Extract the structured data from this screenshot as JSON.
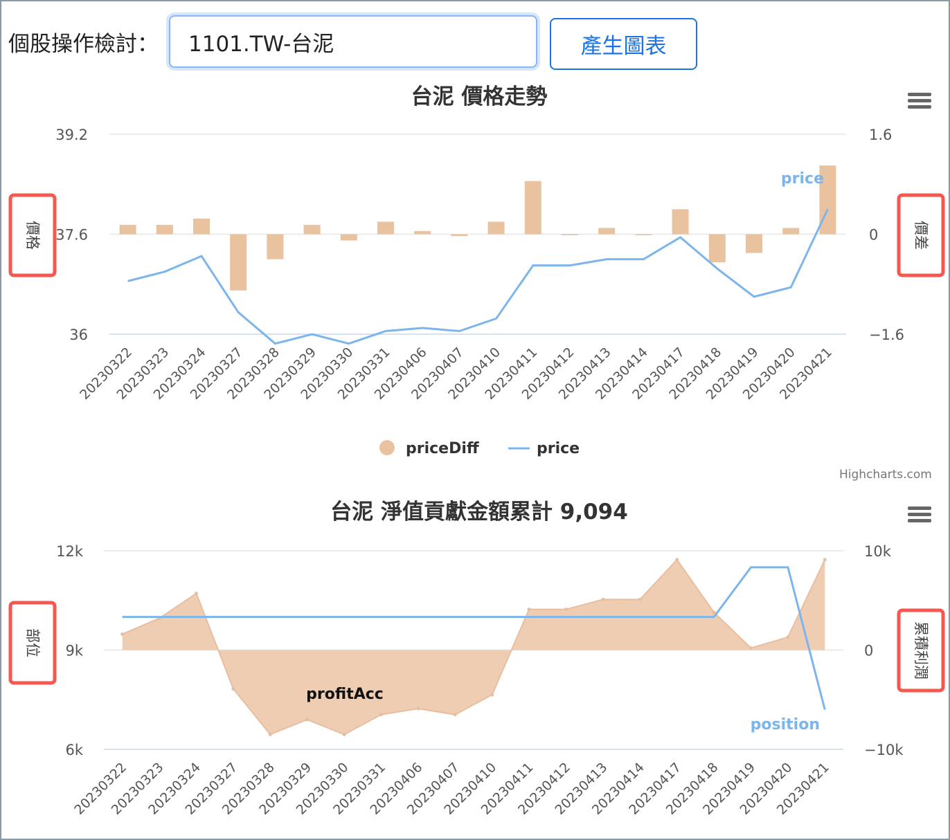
{
  "toolbar": {
    "label": "個股操作檢討：",
    "stock_value": "1101.TW-台泥",
    "generate_label": "產生圖表"
  },
  "credit": "Highcharts.com",
  "colors": {
    "bar": "#e9c29f",
    "line": "#7cb5ec",
    "area_fill": "#efcdb3",
    "area_stroke": "#e8bea0",
    "highlight": "#f4584e"
  },
  "chart_data": [
    {
      "type": "bar+line",
      "title": "台泥 價格走勢",
      "categories": [
        "20230322",
        "20230323",
        "20230324",
        "20230327",
        "20230328",
        "20230329",
        "20230330",
        "20230331",
        "20230406",
        "20230407",
        "20230410",
        "20230411",
        "20230412",
        "20230413",
        "20230414",
        "20230417",
        "20230418",
        "20230419",
        "20230420",
        "20230421"
      ],
      "ylabel_left": "價格",
      "ylabel_right": "價差",
      "left_ticks": [
        "39.2",
        "37.6",
        "36"
      ],
      "right_ticks": [
        "1.6",
        "0",
        "−1.6"
      ],
      "ylim_left": [
        36,
        39.2
      ],
      "ylim_right": [
        -1.6,
        1.6
      ],
      "series": [
        {
          "name": "priceDiff",
          "axis": "right",
          "kind": "bar",
          "values": [
            0.15,
            0.15,
            0.25,
            -0.9,
            -0.4,
            0.15,
            -0.1,
            0.2,
            0.05,
            -0.03,
            0.2,
            0.85,
            0,
            0.1,
            0,
            0.4,
            -0.45,
            -0.3,
            0.1,
            1.1
          ]
        },
        {
          "name": "price",
          "axis": "left",
          "kind": "line",
          "values": [
            36.85,
            37.0,
            37.25,
            36.35,
            35.85,
            36.0,
            35.85,
            36.05,
            36.1,
            36.05,
            36.25,
            37.1,
            37.1,
            37.2,
            37.2,
            37.55,
            37.05,
            36.6,
            36.75,
            38.0
          ]
        }
      ],
      "legend": "bottom-center",
      "inline_label": "price"
    },
    {
      "type": "area+line",
      "title": "台泥 淨值貢獻金額累計 9,094",
      "categories": [
        "20230322",
        "20230323",
        "20230324",
        "20230327",
        "20230328",
        "20230329",
        "20230330",
        "20230331",
        "20230406",
        "20230407",
        "20230410",
        "20230411",
        "20230412",
        "20230413",
        "20230414",
        "20230417",
        "20230418",
        "20230419",
        "20230420",
        "20230421"
      ],
      "ylabel_left": "部位",
      "ylabel_right": "累積利潤",
      "left_ticks": [
        "12k",
        "9k",
        "6k"
      ],
      "right_ticks": [
        "10k",
        "0",
        "−10k"
      ],
      "ylim_left": [
        6000,
        12000
      ],
      "ylim_right": [
        -10000,
        10000
      ],
      "series": [
        {
          "name": "profitAcc",
          "axis": "right",
          "kind": "area",
          "values": [
            1600,
            3200,
            5700,
            -3900,
            -8500,
            -7000,
            -8500,
            -6500,
            -5900,
            -6500,
            -4500,
            4100,
            4100,
            5100,
            5100,
            9100,
            3800,
            200,
            1300,
            9100
          ]
        },
        {
          "name": "position",
          "axis": "left",
          "kind": "line",
          "values": [
            10000,
            10000,
            10000,
            10000,
            10000,
            10000,
            10000,
            10000,
            10000,
            10000,
            10000,
            10000,
            10000,
            10000,
            10000,
            10000,
            10000,
            11500,
            11500,
            7200
          ]
        }
      ],
      "inline_labels": [
        "profitAcc",
        "position"
      ]
    }
  ]
}
